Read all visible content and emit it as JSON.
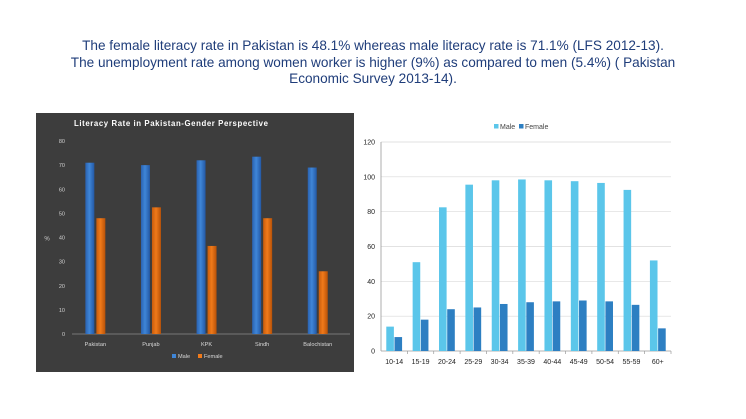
{
  "caption": {
    "line1": "The female literacy rate in Pakistan is 48.1% whereas male literacy rate is 71.1% (LFS 2012-13).",
    "line2": "The unemployment rate among women worker is higher (9%) as compared to men (5.4%) ( Pakistan",
    "line3": "Economic Survey 2013-14)."
  },
  "colors": {
    "left_bg": "#3d3d3d",
    "male_left": "#3f86d8",
    "female_left": "#f07a1a",
    "male_right": "#5bc6ea",
    "female_right": "#2d7fc2"
  },
  "chart_data": [
    {
      "type": "bar",
      "title": "Literacy Rate in Pakistan-Gender Perspective",
      "ylabel": "%",
      "xlabel": "",
      "ylim": [
        0,
        80
      ],
      "yticks": [
        0,
        10,
        20,
        30,
        40,
        50,
        60,
        70,
        80
      ],
      "categories": [
        "Pakistan",
        "Punjab",
        "KPK",
        "Sindh",
        "Balochistan"
      ],
      "series": [
        {
          "name": "Male",
          "values": [
            71,
            70,
            72,
            73.5,
            69
          ]
        },
        {
          "name": "Female",
          "values": [
            48,
            52.5,
            36.5,
            48,
            26
          ]
        }
      ],
      "legend": "bottom",
      "grid": false
    },
    {
      "type": "bar",
      "title": "",
      "xlabel": "",
      "ylabel": "",
      "ylim": [
        0,
        120
      ],
      "yticks": [
        0,
        20,
        40,
        60,
        80,
        100,
        120
      ],
      "categories": [
        "10-14",
        "15-19",
        "20-24",
        "25-29",
        "30-34",
        "35-39",
        "40-44",
        "45-49",
        "50-54",
        "55-59",
        "60+"
      ],
      "series": [
        {
          "name": "Male",
          "values": [
            14,
            51,
            82.5,
            95.5,
            98,
            98.5,
            98,
            97.5,
            96.5,
            92.5,
            52
          ]
        },
        {
          "name": "Female",
          "values": [
            8,
            18,
            24,
            25,
            27,
            28,
            28.5,
            29,
            28.5,
            26.5,
            13
          ]
        }
      ],
      "legend": "top",
      "grid": true
    }
  ]
}
